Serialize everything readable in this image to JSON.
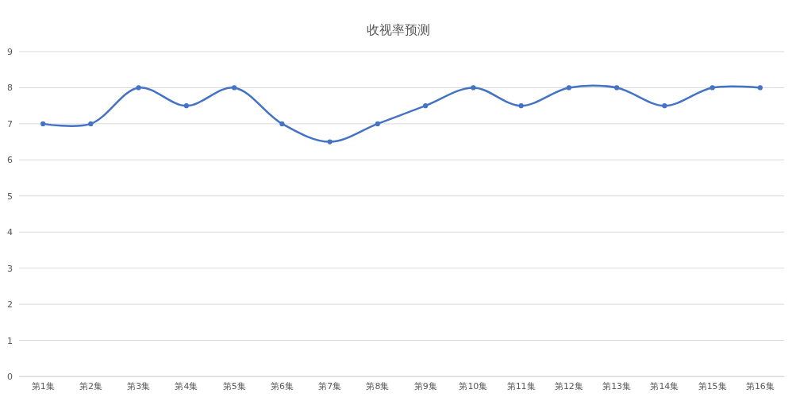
{
  "chart_data": {
    "type": "line",
    "title": "收视率预测",
    "categories": [
      "第1集",
      "第2集",
      "第3集",
      "第4集",
      "第5集",
      "第6集",
      "第7集",
      "第8集",
      "第9集",
      "第10集",
      "第11集",
      "第12集",
      "第13集",
      "第14集",
      "第15集",
      "第16集"
    ],
    "series": [
      {
        "color": "#4472c4",
        "values": [
          7,
          7,
          8,
          7.5,
          8,
          7,
          6.5,
          7,
          7.5,
          8,
          7.5,
          8,
          8,
          7.5,
          8,
          8
        ]
      }
    ],
    "ylim": [
      0,
      9
    ],
    "yticks": [
      0,
      1,
      2,
      3,
      4,
      5,
      6,
      7,
      8,
      9
    ],
    "grid": "y",
    "marker": "circle",
    "line_style": "solid"
  }
}
